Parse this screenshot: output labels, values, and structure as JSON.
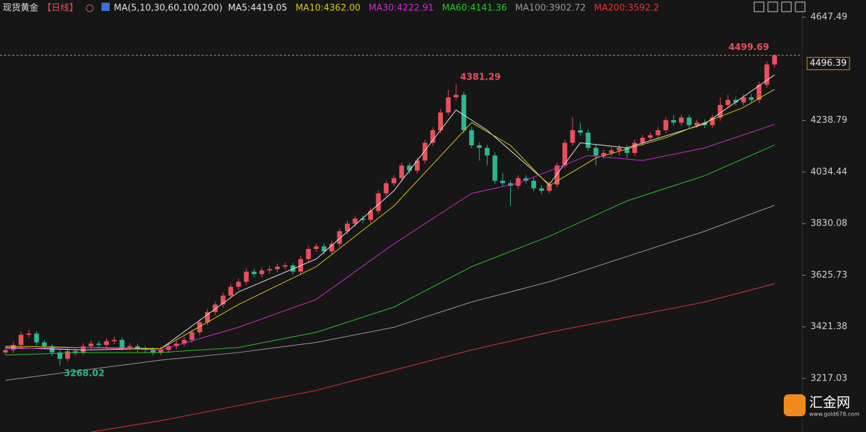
{
  "chart_data": {
    "type": "candlestick",
    "title": "现货黄金",
    "period": "【日线】",
    "indicator": "MA(5,10,30,60,100,200)",
    "ylim": [
      3005.3,
      4715.4
    ],
    "yticks": [
      3217.03,
      3421.38,
      3625.73,
      3830.08,
      4034.44,
      4238.79,
      4647.49
    ],
    "up_color": "#e8505b",
    "down_color": "#2fb58f",
    "open": [
      3320,
      3330,
      3350,
      3390,
      3395,
      3360,
      3345,
      3320,
      3295,
      3325,
      3320,
      3345,
      3355,
      3350,
      3365,
      3370,
      3340,
      3345,
      3335,
      3330,
      3320,
      3330,
      3345,
      3355,
      3370,
      3400,
      3440,
      3480,
      3510,
      3545,
      3580,
      3600,
      3640,
      3630,
      3645,
      3650,
      3660,
      3665,
      3640,
      3690,
      3730,
      3740,
      3720,
      3750,
      3800,
      3830,
      3850,
      3845,
      3880,
      3950,
      3990,
      4010,
      4060,
      4040,
      4080,
      4150,
      4200,
      4270,
      4330,
      4340,
      4200,
      4140,
      4130,
      4100,
      4000,
      3990,
      3980,
      4010,
      4000,
      3970,
      3960,
      3985,
      4060,
      4150,
      4200,
      4190,
      4130,
      4100,
      4110,
      4120,
      4130,
      4110,
      4150,
      4170,
      4180,
      4200,
      4240,
      4230,
      4250,
      4220,
      4230,
      4220,
      4250,
      4300,
      4320,
      4310,
      4330,
      4320,
      4380,
      4460
    ],
    "high": [
      3342,
      3362,
      3402,
      3410,
      3405,
      3370,
      3352,
      3330,
      3337,
      3335,
      3357,
      3367,
      3365,
      3377,
      3382,
      3380,
      3357,
      3355,
      3345,
      3340,
      3342,
      3357,
      3367,
      3382,
      3412,
      3452,
      3492,
      3522,
      3557,
      3592,
      3612,
      3652,
      3652,
      3657,
      3662,
      3672,
      3677,
      3675,
      3702,
      3742,
      3752,
      3752,
      3762,
      3812,
      3842,
      3862,
      3862,
      3892,
      3962,
      4002,
      4022,
      4072,
      4072,
      4092,
      4162,
      4212,
      4282,
      4360,
      4381.29,
      4352,
      4212,
      4152,
      4142,
      4112,
      4030,
      4002,
      4022,
      4022,
      4012,
      3982,
      3997,
      4072,
      4162,
      4250,
      4230,
      4202,
      4142,
      4122,
      4132,
      4142,
      4142,
      4162,
      4182,
      4192,
      4212,
      4252,
      4260,
      4262,
      4262,
      4242,
      4242,
      4262,
      4330,
      4340,
      4332,
      4342,
      4342,
      4392,
      4472,
      4499.69
    ],
    "low": [
      3308,
      3318,
      3338,
      3378,
      3348,
      3333,
      3306,
      3268.02,
      3283,
      3308,
      3310,
      3333,
      3338,
      3340,
      3353,
      3328,
      3328,
      3323,
      3318,
      3308,
      3310,
      3318,
      3333,
      3343,
      3358,
      3388,
      3428,
      3468,
      3498,
      3533,
      3568,
      3588,
      3618,
      3618,
      3633,
      3638,
      3648,
      3628,
      3628,
      3678,
      3718,
      3708,
      3708,
      3738,
      3788,
      3818,
      3833,
      3833,
      3868,
      3938,
      3978,
      3998,
      4028,
      4028,
      4068,
      4138,
      4188,
      4258,
      4318,
      4188,
      4128,
      4080,
      4060,
      3988,
      3978,
      3900,
      3968,
      3988,
      3958,
      3948,
      3948,
      3973,
      4048,
      4138,
      4178,
      4118,
      4060,
      4088,
      4098,
      4100,
      4090,
      4098,
      4138,
      4158,
      4168,
      4188,
      4218,
      4218,
      4208,
      4208,
      4208,
      4208,
      4238,
      4288,
      4298,
      4298,
      4308,
      4308,
      4368,
      4448
    ],
    "close": [
      3330,
      3350,
      3390,
      3395,
      3360,
      3345,
      3320,
      3295,
      3325,
      3320,
      3345,
      3355,
      3350,
      3365,
      3370,
      3340,
      3345,
      3335,
      3330,
      3320,
      3330,
      3345,
      3355,
      3370,
      3400,
      3440,
      3480,
      3510,
      3545,
      3580,
      3600,
      3640,
      3630,
      3645,
      3650,
      3660,
      3665,
      3640,
      3690,
      3730,
      3740,
      3720,
      3750,
      3800,
      3830,
      3850,
      3845,
      3880,
      3950,
      3990,
      4010,
      4060,
      4040,
      4080,
      4150,
      4200,
      4270,
      4330,
      4340,
      4200,
      4140,
      4130,
      4100,
      4000,
      3990,
      3980,
      4010,
      4000,
      3970,
      3960,
      3985,
      4060,
      4150,
      4200,
      4190,
      4130,
      4100,
      4110,
      4120,
      4130,
      4110,
      4150,
      4170,
      4180,
      4200,
      4240,
      4230,
      4250,
      4220,
      4230,
      4220,
      4250,
      4300,
      4320,
      4310,
      4330,
      4320,
      4380,
      4460,
      4496.39
    ],
    "annotations": [
      {
        "label": "4499.69",
        "color": "#e8505b"
      },
      {
        "label": "4381.29",
        "color": "#e8505b"
      },
      {
        "label": "3268.02",
        "color": "#2fb58f"
      }
    ],
    "series": [
      {
        "name": "MA5:4419.05",
        "color": "#e6e6e6",
        "x": [
          0,
          10,
          20,
          30,
          40,
          50,
          58,
          62,
          70,
          74,
          80,
          90,
          99
        ],
        "values": [
          3340,
          3330,
          3335,
          3560,
          3690,
          3960,
          4280,
          4200,
          3985,
          4150,
          4130,
          4225,
          4419.05
        ]
      },
      {
        "name": "MA10:4362.00",
        "color": "#d8c81c",
        "x": [
          0,
          10,
          20,
          30,
          40,
          50,
          60,
          65,
          70,
          76,
          85,
          95,
          99
        ],
        "values": [
          3345,
          3340,
          3335,
          3510,
          3660,
          3900,
          4230,
          4140,
          3980,
          4090,
          4170,
          4290,
          4362.0
        ]
      },
      {
        "name": "MA30:4222.91",
        "color": "#d22ad2",
        "x": [
          0,
          10,
          20,
          30,
          40,
          50,
          60,
          66,
          75,
          82,
          90,
          99
        ],
        "values": [
          3335,
          3340,
          3330,
          3420,
          3530,
          3750,
          3950,
          3990,
          4100,
          4080,
          4130,
          4222.91
        ]
      },
      {
        "name": "MA60:4141.36",
        "color": "#2ac82a",
        "x": [
          0,
          10,
          20,
          30,
          40,
          50,
          60,
          70,
          80,
          90,
          99
        ],
        "values": [
          3310,
          3320,
          3320,
          3340,
          3400,
          3500,
          3660,
          3780,
          3920,
          4020,
          4141.36
        ]
      },
      {
        "name": "MA100:3902.72",
        "color": "#9a9a9a",
        "x": [
          0,
          10,
          20,
          30,
          40,
          50,
          60,
          70,
          80,
          90,
          99
        ],
        "values": [
          3210,
          3250,
          3290,
          3320,
          3360,
          3420,
          3520,
          3600,
          3700,
          3800,
          3902.72
        ]
      },
      {
        "name": "MA200:3592.2",
        "color": "#e03535",
        "x": [
          11,
          20,
          30,
          40,
          50,
          60,
          70,
          80,
          90,
          99
        ],
        "values": [
          3005.3,
          3050,
          3110,
          3170,
          3250,
          3330,
          3400,
          3460,
          3520,
          3592.2
        ]
      }
    ],
    "logo": "汇金网",
    "logo_url": "www.gold678.com"
  }
}
